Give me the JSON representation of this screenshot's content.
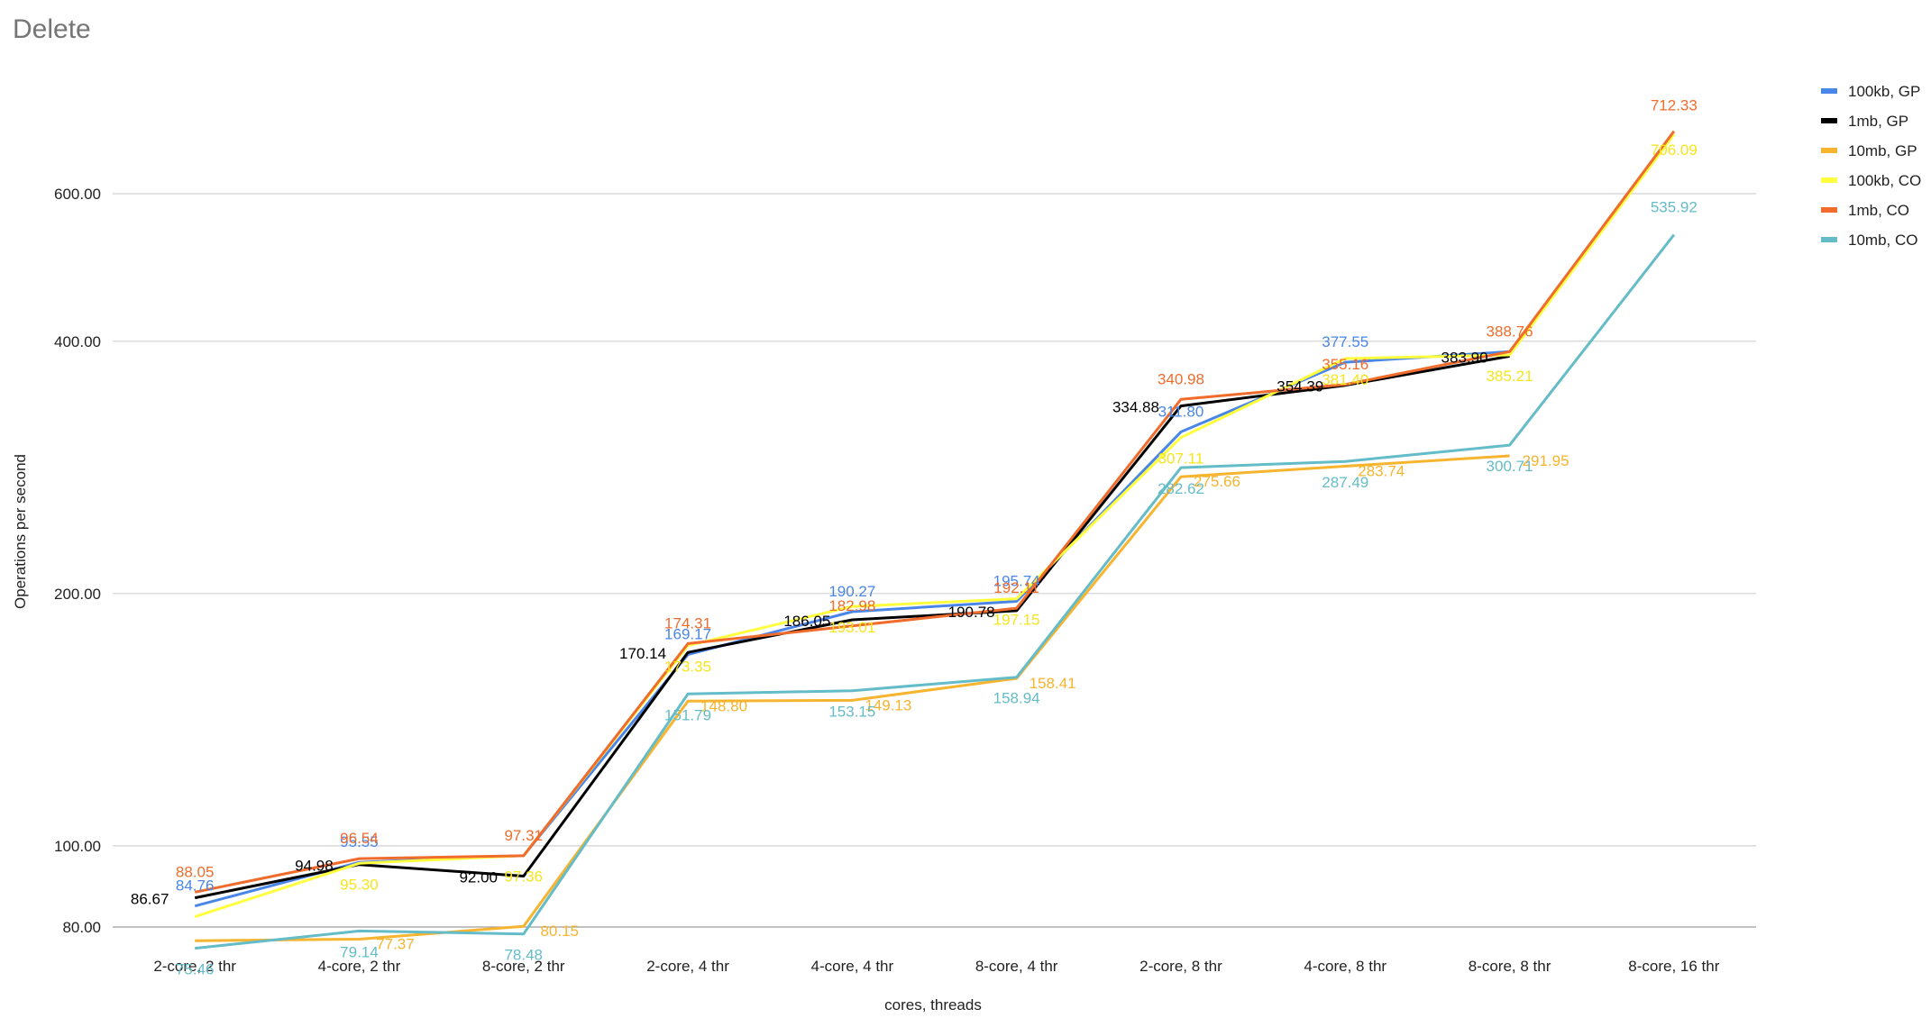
{
  "chart_data": {
    "type": "line",
    "title": "Delete",
    "xlabel": "cores, threads",
    "ylabel": "Operations per second",
    "scale": "log",
    "ylim": [
      77,
      760
    ],
    "yticks": [
      80,
      100,
      200,
      400,
      600
    ],
    "ytick_labels": [
      "80.00",
      "100.00",
      "200.00",
      "400.00",
      "600.00"
    ],
    "grid": true,
    "legend_position": "right",
    "categories": [
      "2-core, 2 thr",
      "4-core, 2 thr",
      "8-core, 2 thr",
      "2-core, 4 thr",
      "4-core, 4 thr",
      "8-core, 4 thr",
      "2-core, 8 thr",
      "4-core, 8 thr",
      "8-core, 8 thr",
      "8-core, 16 thr"
    ],
    "series": [
      {
        "name": "100kb, GP",
        "color": "#4a86e8",
        "values": [
          84.76,
          95.55,
          97.36,
          169.17,
          190.27,
          195.74,
          311.8,
          377.55,
          388.76,
          null
        ],
        "labels": [
          "84.76",
          "95.55",
          "",
          "169.17",
          "190.27",
          "195.74",
          "311.80",
          "377.55",
          "",
          ""
        ]
      },
      {
        "name": "1mb, GP",
        "color": "#000000",
        "values": [
          86.67,
          94.98,
          92.0,
          170.14,
          186.05,
          190.78,
          334.88,
          354.39,
          383.9,
          null
        ],
        "labels": [
          "86.67",
          "94.98",
          "92.00",
          "170.14",
          "186.05",
          "190.78",
          "334.88",
          "354.39",
          "383.90",
          ""
        ]
      },
      {
        "name": "10mb, GP",
        "color": "#f6b42f",
        "values": [
          77.05,
          77.37,
          80.15,
          148.8,
          149.13,
          158.41,
          275.66,
          283.74,
          291.95,
          null
        ],
        "labels": [
          "",
          "77.37",
          "80.15",
          "148.80",
          "149.13",
          "158.41",
          "275.66",
          "283.74",
          "291.95",
          ""
        ]
      },
      {
        "name": "100kb, CO",
        "color": "#ffff3d",
        "values": [
          82.28,
          95.3,
          97.36,
          173.35,
          193.01,
          197.15,
          307.11,
          381.4,
          385.21,
          706.09
        ],
        "labels": [
          "",
          "95.30",
          "97.36",
          "173.35",
          "193.01",
          "197.15",
          "307.11",
          "381.40",
          "385.21",
          "706.09"
        ]
      },
      {
        "name": "1mb, CO",
        "color": "#ef6c2c",
        "values": [
          88.05,
          96.54,
          97.31,
          174.31,
          182.98,
          192.11,
          340.98,
          355.16,
          388.76,
          712.33
        ],
        "labels": [
          "88.05",
          "96.54",
          "97.31",
          "174.31",
          "182.98",
          "192.11",
          "340.98",
          "355.16",
          "388.76",
          "712.33"
        ]
      },
      {
        "name": "10mb, CO",
        "color": "#64bcc8",
        "values": [
          75.46,
          79.14,
          78.48,
          151.79,
          153.15,
          158.94,
          282.62,
          287.49,
          300.71,
          535.92
        ],
        "labels": [
          "75.46",
          "79.14",
          "78.48",
          "151.79",
          "153.15",
          "158.94",
          "282.62",
          "287.49",
          "300.71",
          "535.92"
        ]
      }
    ]
  }
}
